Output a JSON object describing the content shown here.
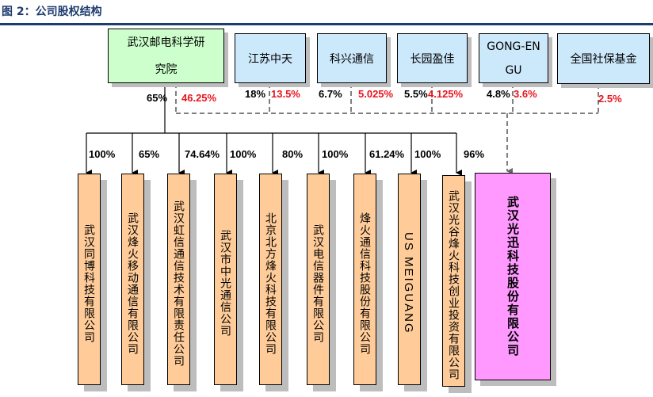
{
  "title": "图 2：公司股权结构",
  "parent": {
    "name": "武汉邮电科学研究院",
    "pct_subsidiaries": "65%",
    "pct_target": "46.25%"
  },
  "shareholders": [
    {
      "name": "江苏中天",
      "pct_direct": "18%",
      "pct_target": "13.5%"
    },
    {
      "name": "科兴通信",
      "pct_direct": "6.7%",
      "pct_target": "5.025%"
    },
    {
      "name": "长园盈佳",
      "pct_direct": "5.5%",
      "pct_target": "4.125%"
    },
    {
      "name": "GONG-EN GU",
      "pct_direct": "4.8%",
      "pct_target": "3.6%"
    },
    {
      "name": "全国社保基金",
      "pct_direct": "",
      "pct_target": "2.5%"
    }
  ],
  "subsidiaries": [
    {
      "name": "武汉同博科技有限公司",
      "pct": "100%"
    },
    {
      "name": "武汉烽火移动通信有限公司",
      "pct": "65%"
    },
    {
      "name": "武汉虹信通信技术有限责任公司",
      "pct": "74.64%"
    },
    {
      "name": "武汉市中光通信公司",
      "pct": "100%"
    },
    {
      "name": "北京北方烽火科技有限公司",
      "pct": "80%"
    },
    {
      "name": "武汉电信器件有限公司",
      "pct": "100%"
    },
    {
      "name": "烽火通信科技股份有限公司",
      "pct": "61.24%"
    },
    {
      "name": "US MEIGUANG",
      "pct": "100%"
    },
    {
      "name": "武汉光谷烽火科技创业投资有限公司",
      "pct": "96%"
    }
  ],
  "target": {
    "name": "武汉光迅科技股份有限公司"
  },
  "colors": {
    "parent": "#ccffcc",
    "shareholder": "#cce8fb",
    "subsidiary": "#ffcc99",
    "target": "#ff99ff",
    "highlight": "#e8141e",
    "title": "#1f3c6e"
  }
}
